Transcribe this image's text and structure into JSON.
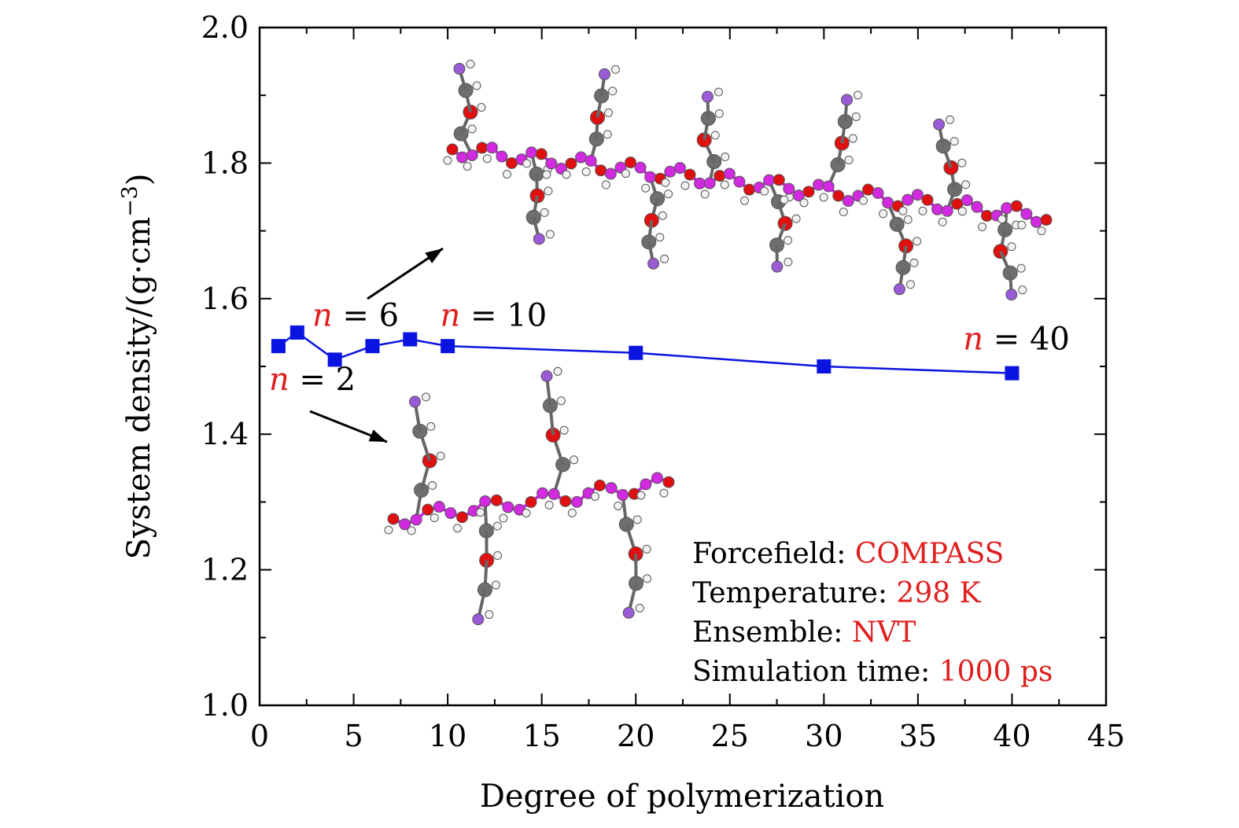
{
  "chart_data": {
    "type": "line",
    "xlabel": "Degree of polymerization",
    "ylabel": "System density/(g·cm",
    "ylabel_sup": "−3",
    "ylabel_close": ")",
    "xlim": [
      0,
      45
    ],
    "ylim": [
      1.0,
      2.0
    ],
    "x_ticks": [
      "0",
      "5",
      "10",
      "15",
      "20",
      "25",
      "30",
      "35",
      "40",
      "45"
    ],
    "y_ticks": [
      "1.0",
      "1.2",
      "1.4",
      "1.6",
      "1.8",
      "2.0"
    ],
    "grid": false,
    "series": [
      {
        "color": "#0a14e0",
        "x": [
          1,
          2,
          4,
          6,
          8,
          10,
          20,
          30,
          40
        ],
        "y": [
          1.53,
          1.55,
          1.51,
          1.53,
          1.54,
          1.53,
          1.52,
          1.5,
          1.49
        ]
      }
    ],
    "annotations": [
      {
        "var": "n",
        "rest": " = 6",
        "x": 2.8,
        "y": 1.56
      },
      {
        "var": "n",
        "rest": " = 10",
        "x": 9.6,
        "y": 1.56
      },
      {
        "var": "n",
        "rest": " = 40",
        "x": 37.4,
        "y": 1.525
      },
      {
        "var": "n",
        "rest": " = 2",
        "x": 0.5,
        "y": 1.465
      }
    ],
    "info_box": [
      {
        "label": "Forcefield: ",
        "value": "COMPASS"
      },
      {
        "label": "Temperature: ",
        "value": "298 K"
      },
      {
        "label": "Ensemble: ",
        "value": "NVT"
      },
      {
        "label": "Simulation time: ",
        "value": "1000 ps"
      }
    ]
  },
  "colors": {
    "atom_carbon": "#6e6e6e",
    "atom_oxygen": "#e01010",
    "atom_hydrogen": "#f2f2f2",
    "atom_backbone": "#d22ae0",
    "atom_end": "#9b5ad6"
  }
}
